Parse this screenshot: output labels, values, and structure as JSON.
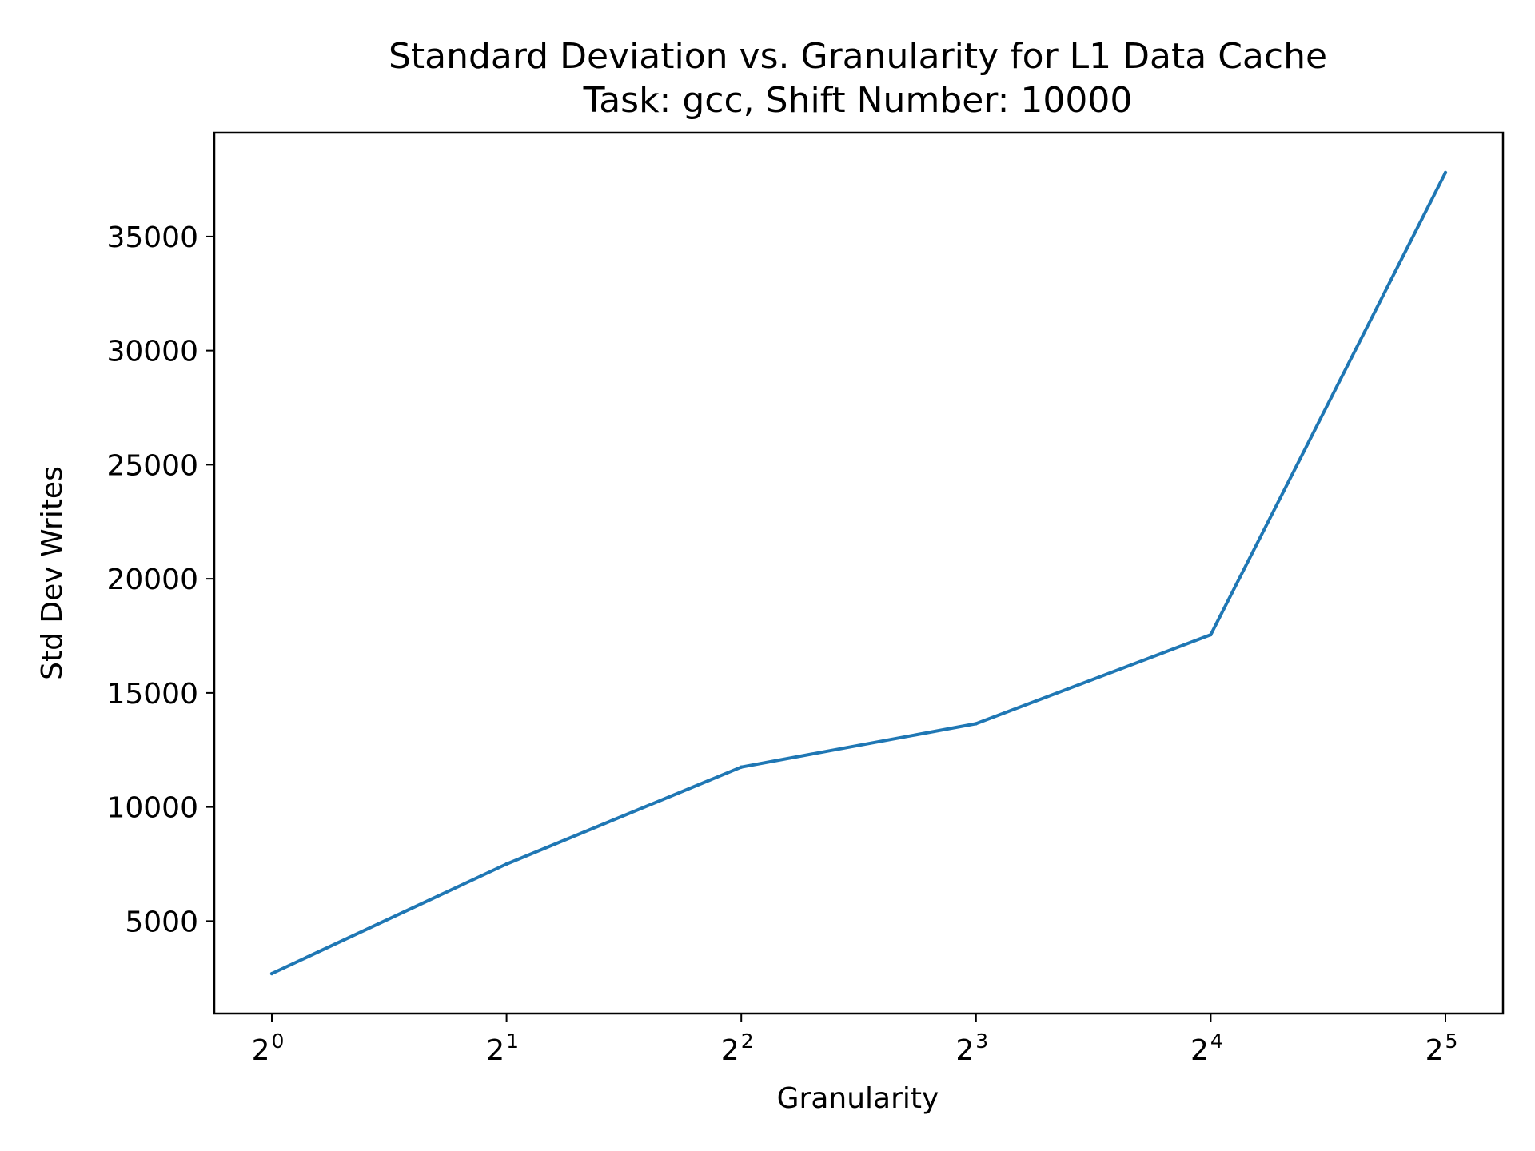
{
  "chart_data": {
    "type": "line",
    "title": "Standard Deviation vs. Granularity for L1 Data Cache",
    "subtitle": "Task: gcc, Shift Number: 10000",
    "xlabel": "Granularity",
    "ylabel": "Std Dev Writes",
    "x_scale": "log2",
    "x_tick_base": "2",
    "x_tick_exponents": [
      "0",
      "1",
      "2",
      "3",
      "4",
      "5"
    ],
    "x": [
      1,
      2,
      4,
      8,
      16,
      32
    ],
    "y_ticks": [
      "5000",
      "10000",
      "15000",
      "20000",
      "25000",
      "30000",
      "35000"
    ],
    "y_tick_values": [
      5000,
      10000,
      15000,
      20000,
      25000,
      30000,
      35000
    ],
    "ylim": [
      950,
      39550
    ],
    "grid": false,
    "series": [
      {
        "color": "#1f77b4",
        "values": [
          2700,
          7500,
          11750,
          13650,
          17550,
          37800
        ]
      }
    ]
  }
}
